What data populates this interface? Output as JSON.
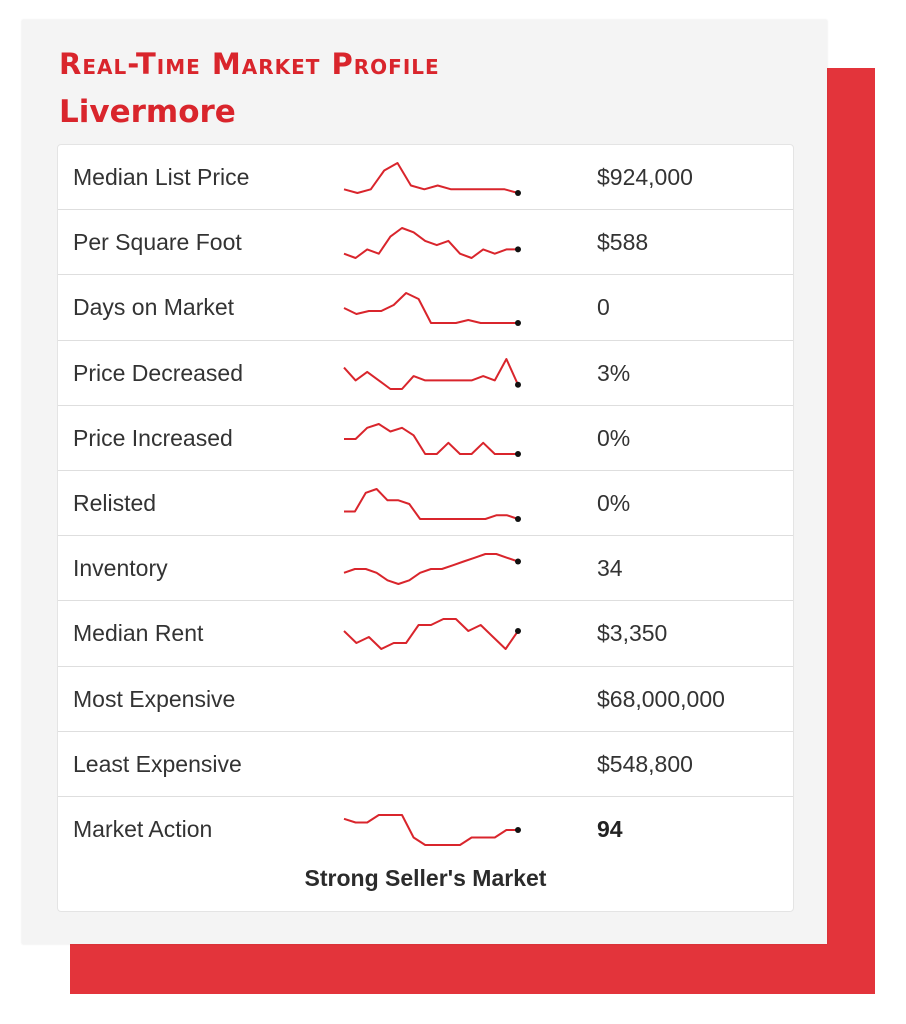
{
  "header": {
    "title": "Real-Time Market Profile",
    "city": "Livermore"
  },
  "colors": {
    "accent": "#d9252c",
    "backdrop": "#e3343b",
    "line": "#d9252c",
    "endpoint": "#111111"
  },
  "rows": [
    {
      "label": "Median List Price",
      "value": "$924,000",
      "trend": [
        3,
        2,
        3,
        8,
        10,
        4,
        3,
        4,
        3,
        3,
        3,
        3,
        3,
        2
      ],
      "bold": false
    },
    {
      "label": "Per Square Foot",
      "value": "$588",
      "trend": [
        4,
        3,
        5,
        4,
        8,
        10,
        9,
        7,
        6,
        7,
        4,
        3,
        5,
        4,
        5,
        5
      ],
      "bold": false
    },
    {
      "label": "Days on Market",
      "value": "0",
      "trend": [
        5,
        3,
        4,
        4,
        6,
        10,
        8,
        0,
        0,
        0,
        1,
        0,
        0,
        0,
        0
      ],
      "bold": false
    },
    {
      "label": "Price Decreased",
      "value": "3%",
      "trend": [
        7,
        4,
        6,
        4,
        2,
        2,
        5,
        4,
        4,
        4,
        4,
        4,
        5,
        4,
        9,
        3
      ],
      "bold": false
    },
    {
      "label": "Price Increased",
      "value": "0%",
      "trend": [
        4,
        4,
        7,
        8,
        6,
        7,
        5,
        0,
        0,
        3,
        0,
        0,
        3,
        0,
        0,
        0
      ],
      "bold": false
    },
    {
      "label": "Relisted",
      "value": "0%",
      "trend": [
        2,
        2,
        7,
        8,
        5,
        5,
        4,
        0,
        0,
        0,
        0,
        0,
        0,
        0,
        1,
        1,
        0
      ],
      "bold": false
    },
    {
      "label": "Inventory",
      "value": "34",
      "trend": [
        4,
        5,
        5,
        4,
        2,
        1,
        2,
        4,
        5,
        5,
        6,
        7,
        8,
        9,
        9,
        8,
        7
      ],
      "bold": false
    },
    {
      "label": "Median Rent",
      "value": "$3,350",
      "trend": [
        6,
        4,
        5,
        3,
        4,
        4,
        7,
        7,
        8,
        8,
        6,
        7,
        5,
        3,
        6
      ],
      "bold": false
    },
    {
      "label": "Most Expensive",
      "value": "$68,000,000",
      "trend": [],
      "bold": false
    },
    {
      "label": "Least Expensive",
      "value": "$548,800",
      "trend": [],
      "bold": false
    },
    {
      "label": "Market Action",
      "value": "94",
      "trend": [
        8,
        7,
        7,
        9,
        9,
        9,
        3,
        1,
        1,
        1,
        1,
        3,
        3,
        3,
        5,
        5
      ],
      "bold": true
    }
  ],
  "market_label": "Strong Seller's Market"
}
